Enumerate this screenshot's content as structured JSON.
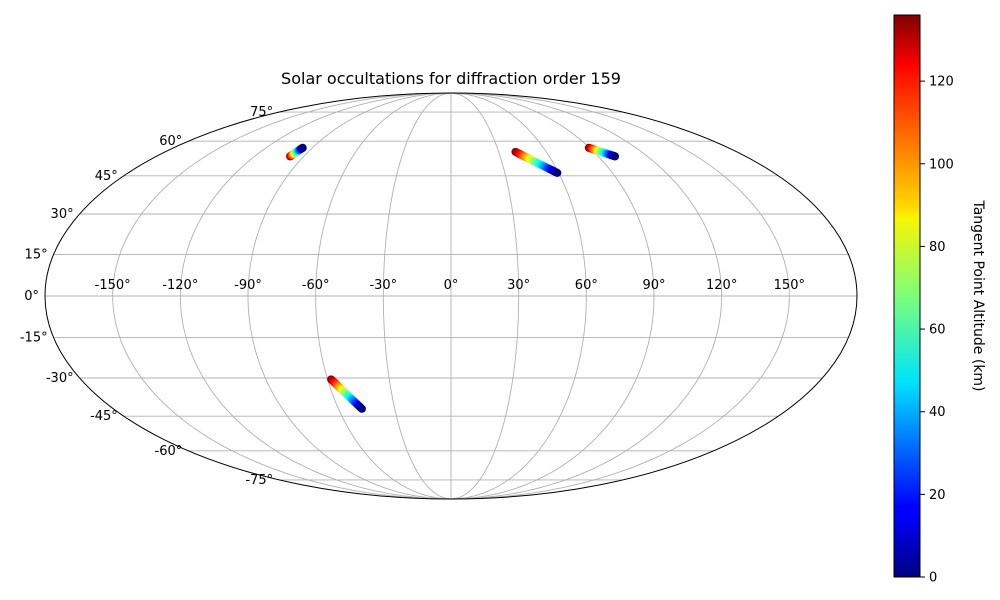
{
  "chart_data": {
    "type": "scatter",
    "projection": "mollweide",
    "title": "Solar occultations for diffraction order 159",
    "grid": true,
    "x_ticks": [
      "-150°",
      "-120°",
      "-90°",
      "-60°",
      "-30°",
      "0°",
      "30°",
      "60°",
      "90°",
      "120°",
      "150°"
    ],
    "x_tick_values": [
      -150,
      -120,
      -90,
      -60,
      -30,
      0,
      30,
      60,
      90,
      120,
      150
    ],
    "y_ticks": [
      "75°",
      "60°",
      "45°",
      "30°",
      "15°",
      "0°",
      "-15°",
      "-30°",
      "-45°",
      "-60°",
      "-75°"
    ],
    "y_tick_values": [
      75,
      60,
      45,
      30,
      15,
      0,
      -15,
      -30,
      -45,
      -60,
      -75
    ],
    "colorbar": {
      "label": "Tangent Point Altitude (km)",
      "range": [
        0,
        136
      ],
      "ticks": [
        "0",
        "20",
        "40",
        "60",
        "80",
        "100",
        "120"
      ],
      "tick_values": [
        0,
        20,
        40,
        60,
        80,
        100,
        120
      ],
      "colormap": "jet"
    },
    "series": [
      {
        "lon_range": [
          -98.3,
          -96.2
        ],
        "lat_range": [
          53.2,
          57.0
        ]
      },
      {
        "lon_range": [
          40.6,
          59.3
        ],
        "lat_range": [
          55.2,
          46.2
        ]
      },
      {
        "lon_range": [
          89.4,
          100.2
        ],
        "lat_range": [
          57.0,
          53.2
        ]
      },
      {
        "lon_range": [
          -58.3,
          -47.5
        ],
        "lat_range": [
          -30.5,
          -42.0
        ]
      }
    ]
  }
}
